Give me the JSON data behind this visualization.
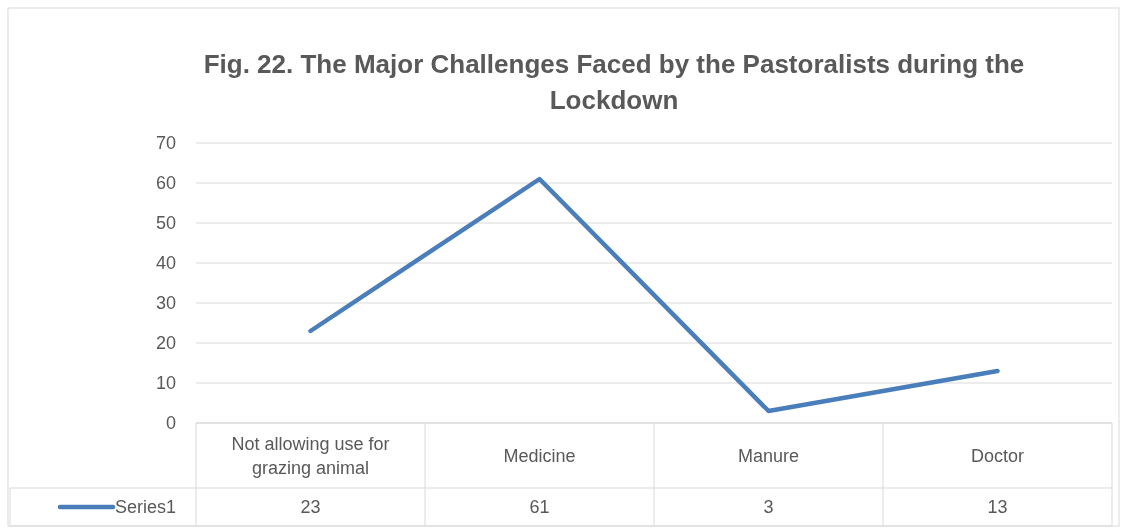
{
  "chart_data": {
    "type": "line",
    "title": "Fig. 22. The Major Challenges Faced by the Pastoralists during the Lockdown",
    "categories": [
      "Not allowing use for grazing animal",
      "Medicine",
      "Manure",
      "Doctor"
    ],
    "series": [
      {
        "name": "Series1",
        "color": "#4a7ebb",
        "values": [
          23,
          61,
          3,
          13
        ]
      }
    ],
    "ylim": [
      0,
      70
    ],
    "yticks": [
      0,
      10,
      20,
      30,
      40,
      50,
      60,
      70
    ],
    "grid": "y",
    "legend": "bottom",
    "data_labels": true,
    "marker": "none",
    "line_style": "solid"
  }
}
